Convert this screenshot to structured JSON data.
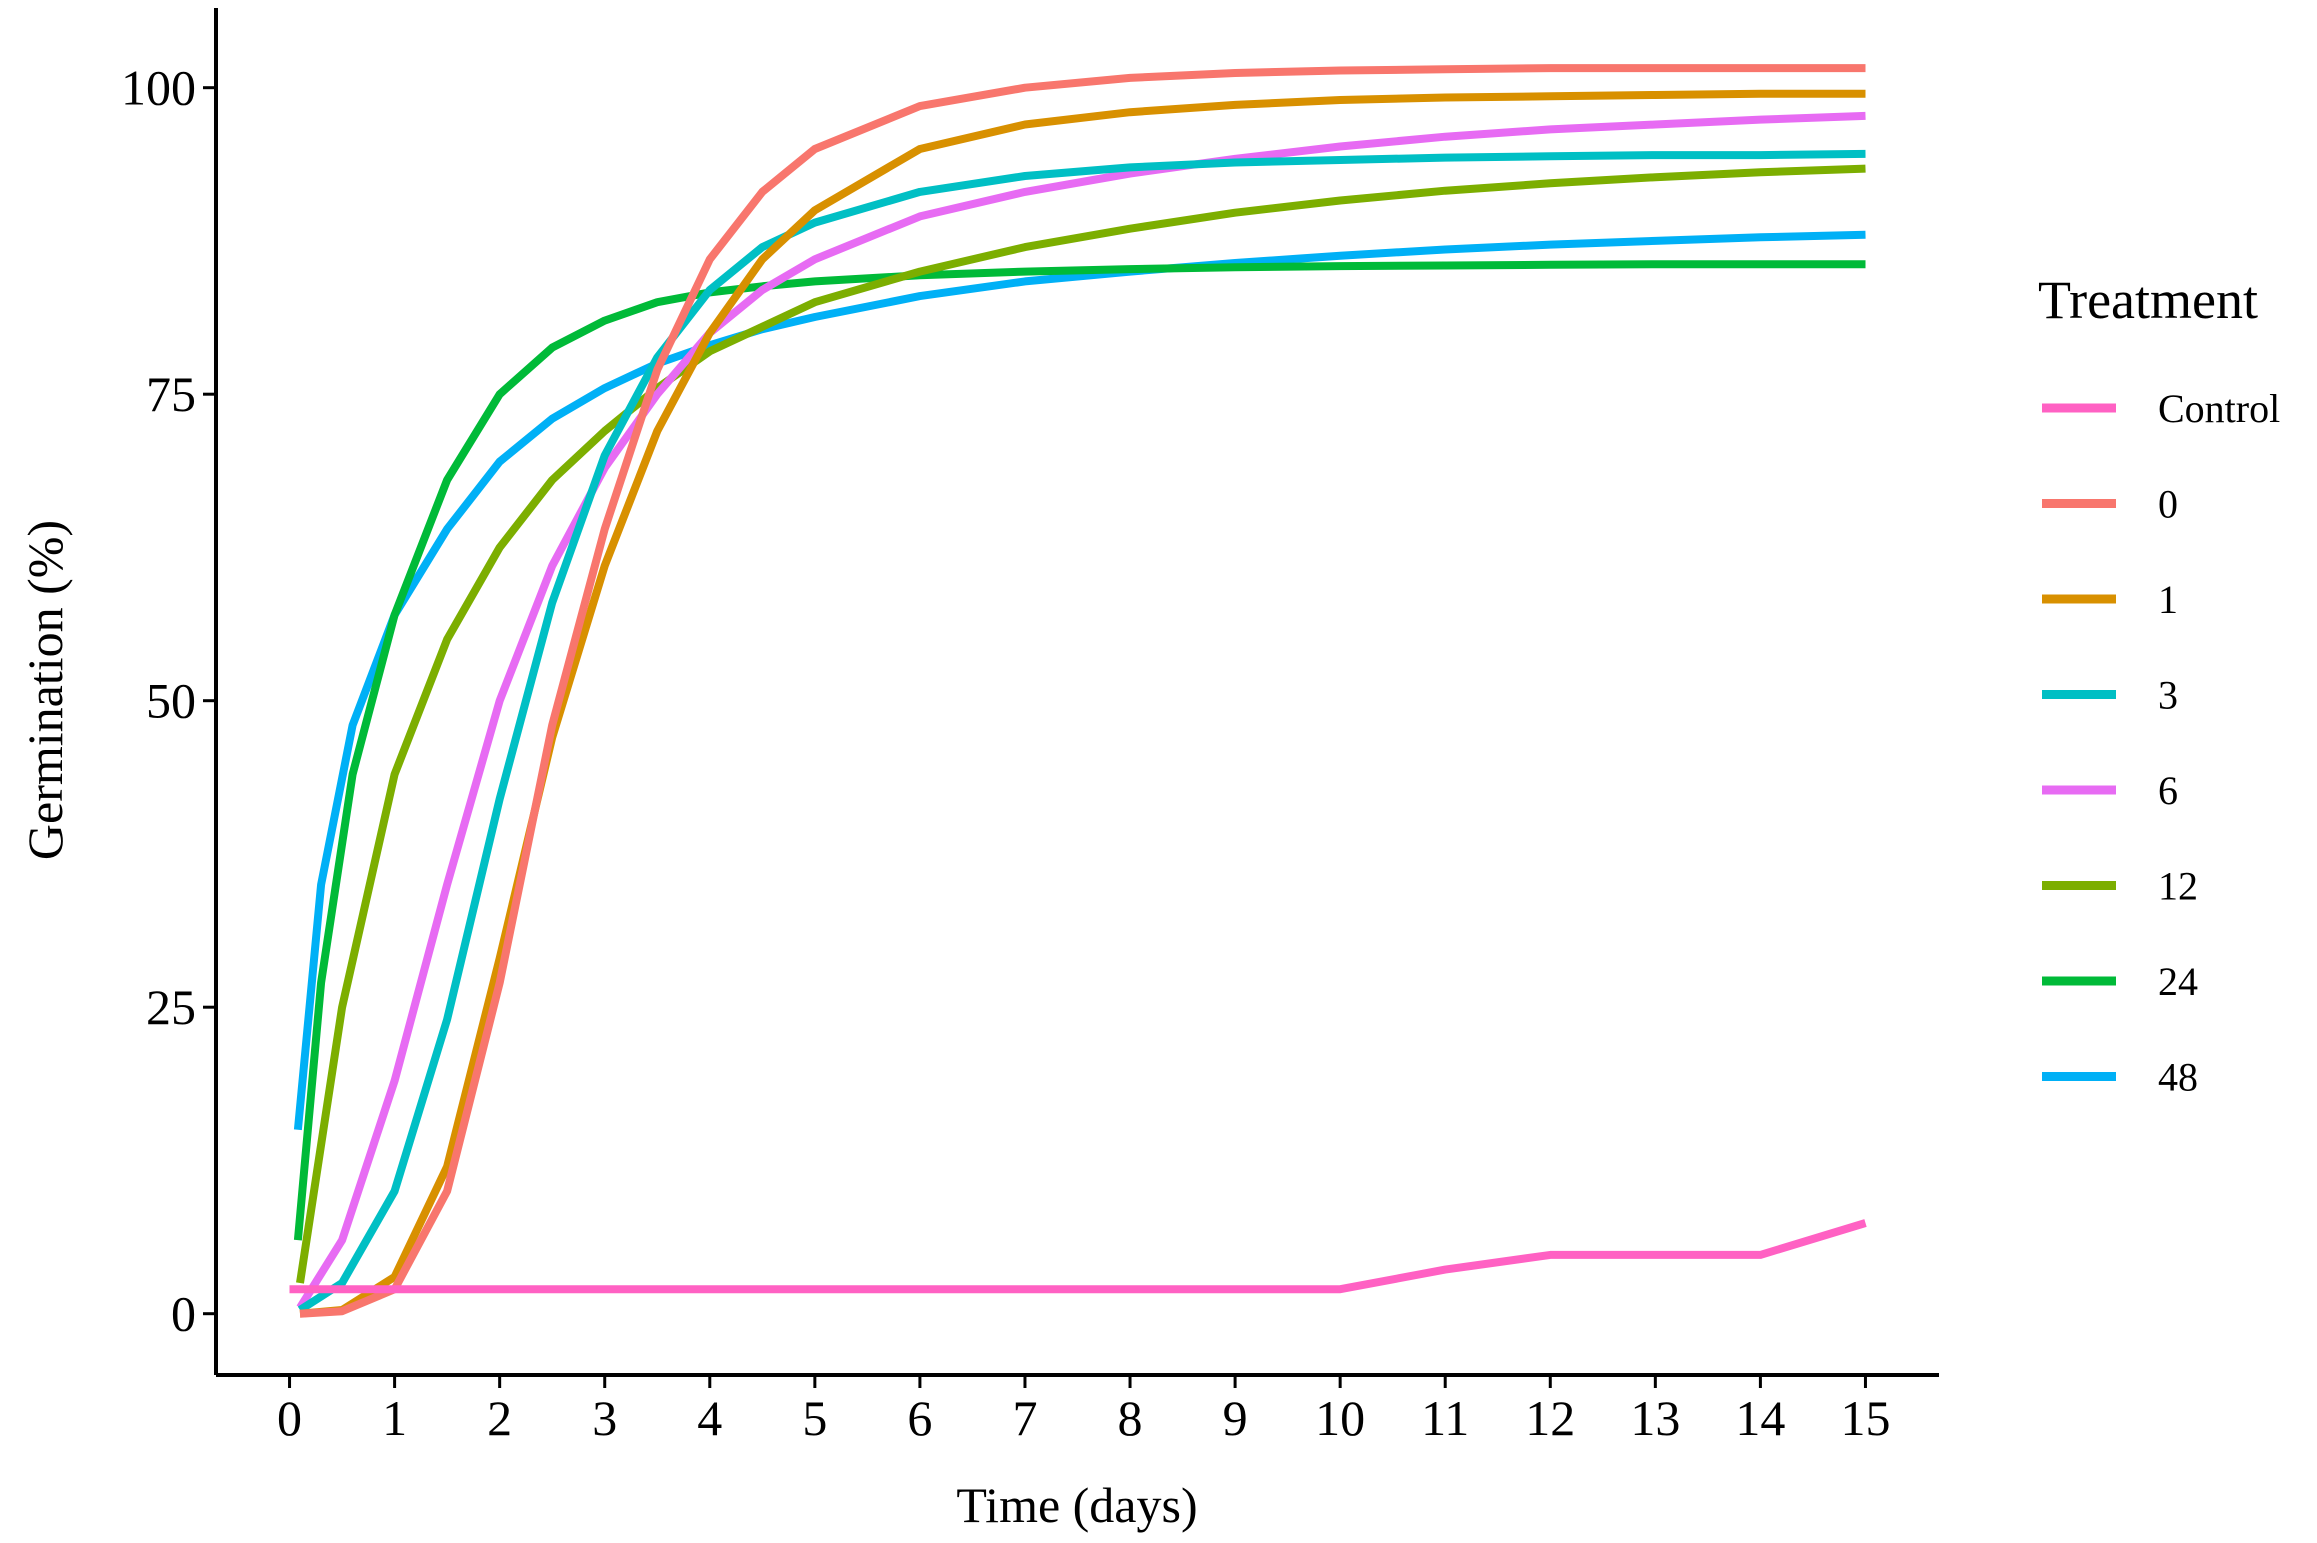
{
  "chart_data": {
    "type": "line",
    "title": "",
    "xlabel": "Time (days)",
    "ylabel": "Germination (%)",
    "xlim": [
      -0.7,
      15.7
    ],
    "ylim": [
      -5,
      106.5
    ],
    "x_ticks": [
      0,
      1,
      2,
      3,
      4,
      5,
      6,
      7,
      8,
      9,
      10,
      11,
      12,
      13,
      14,
      15
    ],
    "y_ticks": [
      0,
      25,
      50,
      75,
      100
    ],
    "grid": false,
    "legend": {
      "title": "Treatment",
      "position": "right"
    },
    "series": [
      {
        "name": "Control",
        "color": "#FF61C3",
        "x": [
          0,
          1,
          2,
          3,
          4,
          5,
          6,
          7,
          8,
          9,
          10,
          11,
          12,
          13,
          14,
          15
        ],
        "y": [
          2,
          2,
          2,
          2,
          2,
          2,
          2,
          2,
          2,
          2,
          2,
          3.6,
          4.8,
          4.8,
          4.8,
          7.4
        ]
      },
      {
        "name": "0",
        "color": "#F8766D",
        "x": [
          0.1,
          0.5,
          1,
          1.5,
          2,
          2.5,
          3,
          3.5,
          4,
          4.5,
          5,
          6,
          7,
          8,
          9,
          10,
          11,
          12,
          13,
          14,
          15
        ],
        "y": [
          0,
          0.2,
          2,
          10,
          27,
          48,
          64,
          77,
          86,
          91.5,
          95,
          98.5,
          100,
          100.8,
          101.2,
          101.4,
          101.5,
          101.6,
          101.6,
          101.6,
          101.6
        ]
      },
      {
        "name": "1",
        "color": "#D89000",
        "x": [
          0.1,
          0.5,
          1,
          1.5,
          2,
          2.5,
          3,
          3.5,
          4,
          4.5,
          5,
          6,
          7,
          8,
          9,
          10,
          11,
          12,
          13,
          14,
          15
        ],
        "y": [
          0,
          0.3,
          3,
          12,
          29,
          47,
          61,
          72,
          80,
          86,
          90,
          95,
          97,
          98,
          98.6,
          99,
          99.2,
          99.3,
          99.4,
          99.5,
          99.5
        ]
      },
      {
        "name": "3",
        "color": "#00BFC4",
        "x": [
          0.1,
          0.5,
          1,
          1.5,
          2,
          2.5,
          3,
          3.5,
          4,
          4.5,
          5,
          6,
          7,
          8,
          9,
          10,
          11,
          12,
          13,
          14,
          15
        ],
        "y": [
          0.3,
          2.5,
          10,
          24,
          42,
          58,
          70,
          78,
          83.5,
          87,
          89,
          91.5,
          92.8,
          93.5,
          93.9,
          94.1,
          94.3,
          94.4,
          94.5,
          94.5,
          94.6
        ]
      },
      {
        "name": "6",
        "color": "#E76BF3",
        "x": [
          0.1,
          0.5,
          1,
          1.5,
          2,
          2.5,
          3,
          3.5,
          4,
          4.5,
          5,
          6,
          7,
          8,
          9,
          10,
          11,
          12,
          13,
          14,
          15
        ],
        "y": [
          0.5,
          6,
          19,
          35,
          50,
          61,
          69,
          75,
          80,
          83.5,
          86,
          89.5,
          91.5,
          93,
          94.2,
          95.2,
          96,
          96.6,
          97,
          97.4,
          97.7
        ]
      },
      {
        "name": "12",
        "color": "#7CAE00",
        "x": [
          0.1,
          0.5,
          1,
          1.5,
          2,
          2.5,
          3,
          3.5,
          4,
          4.5,
          5,
          6,
          7,
          8,
          9,
          10,
          11,
          12,
          13,
          14,
          15
        ],
        "y": [
          2.5,
          25,
          44,
          55,
          62.5,
          68,
          72,
          75.5,
          78.5,
          80.5,
          82.5,
          85,
          87,
          88.5,
          89.8,
          90.8,
          91.6,
          92.2,
          92.7,
          93.1,
          93.4
        ]
      },
      {
        "name": "24",
        "color": "#00BA38",
        "x": [
          0.08,
          0.3,
          0.6,
          1,
          1.5,
          2,
          2.5,
          3,
          3.5,
          4,
          4.5,
          5,
          6,
          7,
          8,
          9,
          10,
          11,
          12,
          13,
          14,
          15
        ],
        "y": [
          6,
          27,
          44,
          57,
          68,
          75,
          78.8,
          81,
          82.5,
          83.3,
          83.8,
          84.2,
          84.7,
          85,
          85.2,
          85.35,
          85.45,
          85.5,
          85.55,
          85.6,
          85.6,
          85.6
        ]
      },
      {
        "name": "48",
        "color": "#00B0F6",
        "x": [
          0.08,
          0.3,
          0.6,
          1,
          1.5,
          2,
          2.5,
          3,
          3.5,
          4,
          4.5,
          5,
          6,
          7,
          8,
          9,
          10,
          11,
          12,
          13,
          14,
          15
        ],
        "y": [
          15,
          35,
          48,
          57,
          64,
          69.5,
          73,
          75.5,
          77.5,
          79,
          80.3,
          81.3,
          83,
          84.2,
          85,
          85.7,
          86.3,
          86.8,
          87.2,
          87.5,
          87.8,
          88
        ]
      }
    ]
  }
}
